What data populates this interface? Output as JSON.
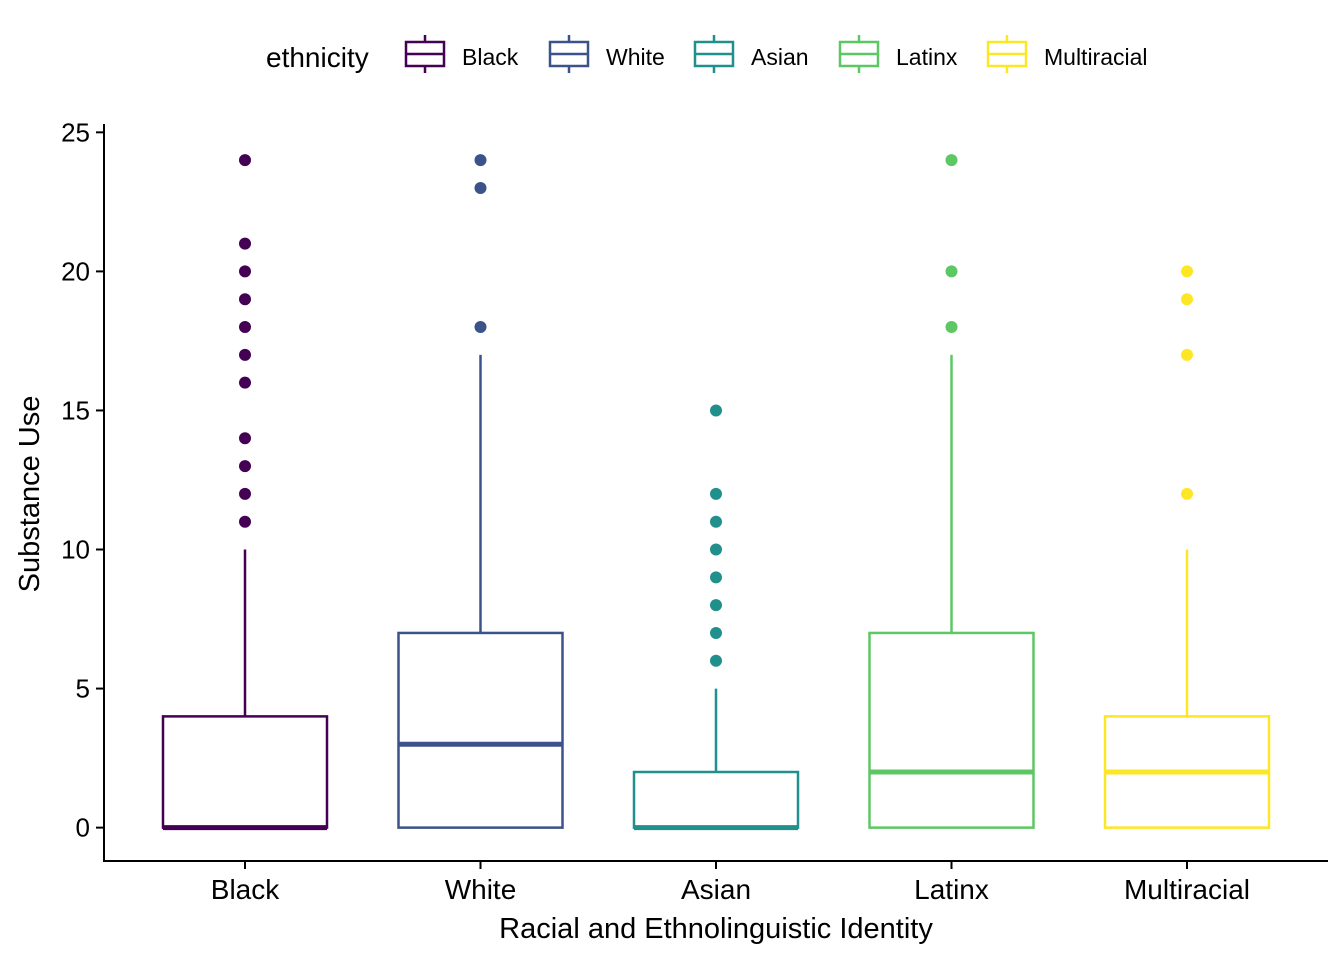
{
  "chart_data": {
    "type": "box",
    "xlabel": "Racial and Ethnolinguistic Identity",
    "ylabel": "Substance Use",
    "ylim": [
      -1.2,
      25.3
    ],
    "yticks": [
      0,
      5,
      10,
      15,
      20,
      25
    ],
    "grid": false,
    "legend": {
      "title": "ethnicity",
      "position": "top"
    },
    "categories": [
      "Black",
      "White",
      "Asian",
      "Latinx",
      "Multiracial"
    ],
    "series": [
      {
        "name": "Black",
        "color": "#440154",
        "q1": 0,
        "median": 0,
        "q3": 4,
        "whisker_low": 0,
        "whisker_high": 10,
        "outliers": [
          11,
          12,
          13,
          14,
          16,
          17,
          18,
          19,
          20,
          21,
          24
        ]
      },
      {
        "name": "White",
        "color": "#3B528B",
        "q1": 0,
        "median": 3,
        "q3": 7,
        "whisker_low": 0,
        "whisker_high": 17,
        "outliers": [
          18,
          23,
          24
        ]
      },
      {
        "name": "Asian",
        "color": "#21908C",
        "q1": 0,
        "median": 0,
        "q3": 2,
        "whisker_low": 0,
        "whisker_high": 5,
        "outliers": [
          6,
          7,
          8,
          9,
          10,
          11,
          12,
          15
        ]
      },
      {
        "name": "Latinx",
        "color": "#5DC863",
        "q1": 0,
        "median": 2,
        "q3": 7,
        "whisker_low": 0,
        "whisker_high": 17,
        "outliers": [
          18,
          20,
          24
        ]
      },
      {
        "name": "Multiracial",
        "color": "#FDE725",
        "q1": 0,
        "median": 2,
        "q3": 4,
        "whisker_low": 0,
        "whisker_high": 10,
        "outliers": [
          12,
          17,
          19,
          20
        ]
      }
    ]
  }
}
